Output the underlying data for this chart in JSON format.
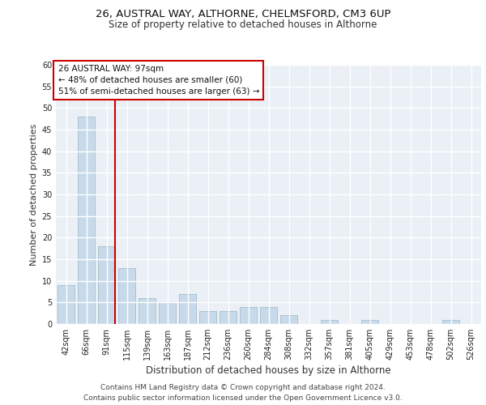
{
  "title1": "26, AUSTRAL WAY, ALTHORNE, CHELMSFORD, CM3 6UP",
  "title2": "Size of property relative to detached houses in Althorne",
  "xlabel": "Distribution of detached houses by size in Althorne",
  "ylabel": "Number of detached properties",
  "bar_color": "#c8daea",
  "bar_edge_color": "#9ab5c8",
  "categories": [
    "42sqm",
    "66sqm",
    "91sqm",
    "115sqm",
    "139sqm",
    "163sqm",
    "187sqm",
    "212sqm",
    "236sqm",
    "260sqm",
    "284sqm",
    "308sqm",
    "332sqm",
    "357sqm",
    "381sqm",
    "405sqm",
    "429sqm",
    "453sqm",
    "478sqm",
    "502sqm",
    "526sqm"
  ],
  "values": [
    9,
    48,
    18,
    13,
    6,
    5,
    7,
    3,
    3,
    4,
    4,
    2,
    0,
    1,
    0,
    1,
    0,
    0,
    0,
    1,
    0
  ],
  "ylim": [
    0,
    60
  ],
  "yticks": [
    0,
    5,
    10,
    15,
    20,
    25,
    30,
    35,
    40,
    45,
    50,
    55,
    60
  ],
  "vline_x": 2.43,
  "property_label": "26 AUSTRAL WAY: 97sqm",
  "annotation_line1": "← 48% of detached houses are smaller (60)",
  "annotation_line2": "51% of semi-detached houses are larger (63) →",
  "vline_color": "#cc0000",
  "box_face_color": "#ffffff",
  "box_edge_color": "#cc0000",
  "bg_color": "#eaf0f6",
  "grid_color": "#ffffff",
  "footer1": "Contains HM Land Registry data © Crown copyright and database right 2024.",
  "footer2": "Contains public sector information licensed under the Open Government Licence v3.0.",
  "title1_fontsize": 9.5,
  "title2_fontsize": 8.5,
  "annot_fontsize": 7.5,
  "tick_fontsize": 7,
  "ylabel_fontsize": 8,
  "xlabel_fontsize": 8.5,
  "footer_fontsize": 6.5
}
